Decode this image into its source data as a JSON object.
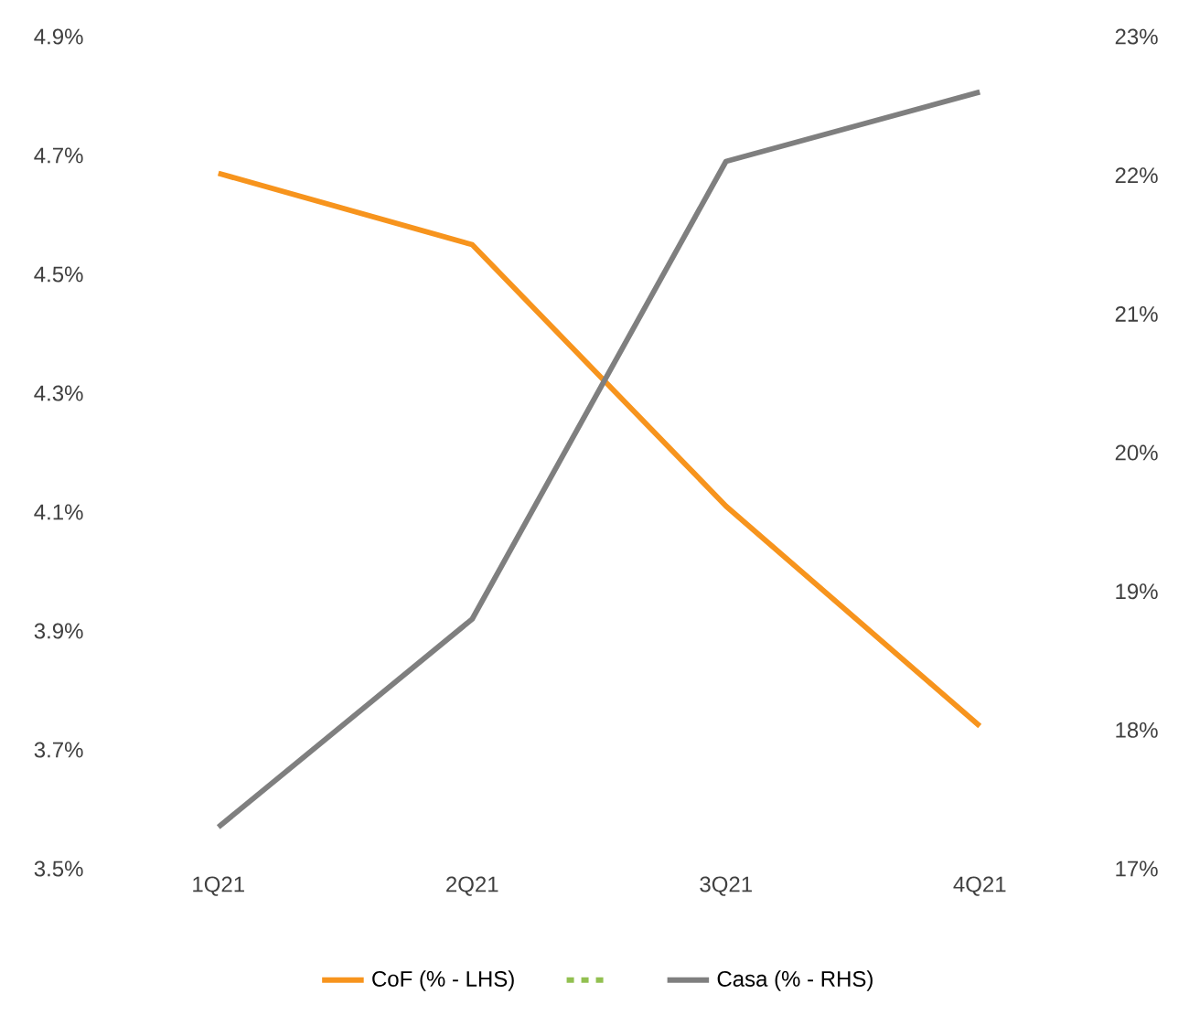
{
  "chart_data": {
    "type": "line",
    "categories": [
      "1Q21",
      "2Q21",
      "3Q21",
      "4Q21"
    ],
    "series": [
      {
        "name": "CoF (% - LHS)",
        "color": "#f7941d",
        "values": [
          4.67,
          4.55,
          4.11,
          3.74
        ]
      },
      {
        "color": "#92c050",
        "line_style": "dashed",
        "values": [
          null,
          null,
          null,
          null
        ]
      },
      {
        "name": "Casa (% - RHS)",
        "color": "#7f7f7f",
        "axis": "y2",
        "values": [
          17.3,
          18.8,
          22.1,
          22.6
        ]
      }
    ],
    "ylim": [
      3.5,
      4.9
    ],
    "yticks": [
      {
        "value": 3.5,
        "label": "3.5%"
      },
      {
        "value": 3.7,
        "label": "3.7%"
      },
      {
        "value": 3.9,
        "label": "3.9%"
      },
      {
        "value": 4.1,
        "label": "4.1%"
      },
      {
        "value": 4.3,
        "label": "4.3%"
      },
      {
        "value": 4.5,
        "label": "4.5%"
      },
      {
        "value": 4.7,
        "label": "4.7%"
      },
      {
        "value": 4.9,
        "label": "4.9%"
      }
    ],
    "y2lim": [
      17,
      23
    ],
    "y2ticks": [
      {
        "value": 17,
        "label": "17%"
      },
      {
        "value": 18,
        "label": "18%"
      },
      {
        "value": 19,
        "label": "19%"
      },
      {
        "value": 20,
        "label": "20%"
      },
      {
        "value": 21,
        "label": "21%"
      },
      {
        "value": 22,
        "label": "22%"
      },
      {
        "value": 23,
        "label": "23%"
      }
    ],
    "grid": false,
    "marker": "none",
    "line_style": "solid",
    "legend": "bottom"
  }
}
